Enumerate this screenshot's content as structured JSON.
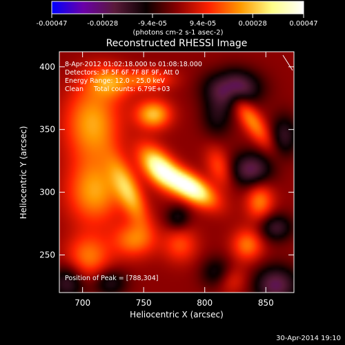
{
  "chart_data": {
    "type": "heatmap",
    "title": "Reconstructed RHESSI Image",
    "xlabel": "Heliocentric X (arcsec)",
    "ylabel": "Heliocentric Y (arcsec)",
    "xlim": [
      681,
      873
    ],
    "ylim": [
      220,
      412
    ],
    "x_ticks": [
      700,
      750,
      800,
      850
    ],
    "y_ticks": [
      250,
      300,
      350,
      400
    ],
    "grid": false,
    "colorbar": {
      "location": "top",
      "range": [
        -0.00047,
        0.00047
      ],
      "tick_values": [
        -0.00047,
        -0.00028,
        -9.4e-05,
        9.4e-05,
        0.00028,
        0.00047
      ],
      "tick_labels": [
        "-0.00047",
        "-0.00028",
        "-9.4e-05",
        "9.4e-05",
        "0.00028",
        "0.00047"
      ],
      "unit_label": "(photons cm-2 s-1 asec-2)",
      "colors": [
        "#0000ff",
        "#6a00a8",
        "#5a1a3a",
        "#0a0000",
        "#8b0000",
        "#ff2200",
        "#ff9900",
        "#ffff88",
        "#ffffff"
      ]
    },
    "annotations": [
      "8-Apr-2012 01:02:18.000 to 01:08:18.000",
      "Detectors: 3F 5F 6F 7F 8F 9F, Att 0",
      "Energy Range: 12.0 - 25.0 keV",
      "Clean     Total counts: 6.79E+03",
      "Position of Peak = [788,304]"
    ],
    "peak": {
      "x": 788,
      "y": 304
    },
    "components": [
      {
        "x": 788,
        "y": 304,
        "sx": 7,
        "sy": 16,
        "rot": 58,
        "amp": 0.00047
      },
      {
        "x": 762,
        "y": 320,
        "sx": 8,
        "sy": 14,
        "rot": 40,
        "amp": 0.00038
      },
      {
        "x": 738,
        "y": 300,
        "sx": 7,
        "sy": 20,
        "rot": 25,
        "amp": 0.00026
      },
      {
        "x": 708,
        "y": 355,
        "sx": 16,
        "sy": 22,
        "rot": 0,
        "amp": 0.00025
      },
      {
        "x": 710,
        "y": 300,
        "sx": 16,
        "sy": 18,
        "rot": 0,
        "amp": 0.00024
      },
      {
        "x": 722,
        "y": 388,
        "sx": 13,
        "sy": 9,
        "rot": -10,
        "amp": 0.0002
      },
      {
        "x": 758,
        "y": 362,
        "sx": 10,
        "sy": 8,
        "rot": 0,
        "amp": 0.00028
      },
      {
        "x": 754,
        "y": 390,
        "sx": 14,
        "sy": 6,
        "rot": 0,
        "amp": 0.00018
      },
      {
        "x": 838,
        "y": 358,
        "sx": 6,
        "sy": 20,
        "rot": 35,
        "amp": 0.00022
      },
      {
        "x": 845,
        "y": 293,
        "sx": 8,
        "sy": 11,
        "rot": 0,
        "amp": 0.00021
      },
      {
        "x": 835,
        "y": 258,
        "sx": 9,
        "sy": 9,
        "rot": 0,
        "amp": 0.0002
      },
      {
        "x": 705,
        "y": 248,
        "sx": 13,
        "sy": 13,
        "rot": 0,
        "amp": 0.0002
      },
      {
        "x": 742,
        "y": 262,
        "sx": 12,
        "sy": 10,
        "rot": 0,
        "amp": 0.0002
      },
      {
        "x": 780,
        "y": 258,
        "sx": 10,
        "sy": 10,
        "rot": 0,
        "amp": 0.00015
      },
      {
        "x": 812,
        "y": 320,
        "sx": 7,
        "sy": 12,
        "rot": 20,
        "amp": 0.00016
      },
      {
        "x": 820,
        "y": 230,
        "sx": 10,
        "sy": 8,
        "rot": 0,
        "amp": 0.00013
      },
      {
        "x": 823,
        "y": 383,
        "sx": 15,
        "sy": 10,
        "rot": 0,
        "amp": -0.00032
      },
      {
        "x": 838,
        "y": 318,
        "sx": 12,
        "sy": 10,
        "rot": 0,
        "amp": -0.00026
      },
      {
        "x": 858,
        "y": 226,
        "sx": 13,
        "sy": 11,
        "rot": 0,
        "amp": -0.00026
      },
      {
        "x": 858,
        "y": 272,
        "sx": 10,
        "sy": 8,
        "rot": 0,
        "amp": -0.0002
      },
      {
        "x": 810,
        "y": 235,
        "sx": 9,
        "sy": 9,
        "rot": 0,
        "amp": -0.00018
      },
      {
        "x": 778,
        "y": 280,
        "sx": 7,
        "sy": 7,
        "rot": 0,
        "amp": -0.00015
      },
      {
        "x": 688,
        "y": 228,
        "sx": 10,
        "sy": 10,
        "rot": 0,
        "amp": -0.0002
      },
      {
        "x": 722,
        "y": 228,
        "sx": 10,
        "sy": 8,
        "rot": 0,
        "amp": -0.00017
      },
      {
        "x": 865,
        "y": 345,
        "sx": 8,
        "sy": 12,
        "rot": 0,
        "amp": -0.00018
      },
      {
        "x": 810,
        "y": 360,
        "sx": 9,
        "sy": 12,
        "rot": 0,
        "amp": -0.00014
      }
    ]
  },
  "footer": {
    "timestamp": "30-Apr-2014 19:10"
  }
}
